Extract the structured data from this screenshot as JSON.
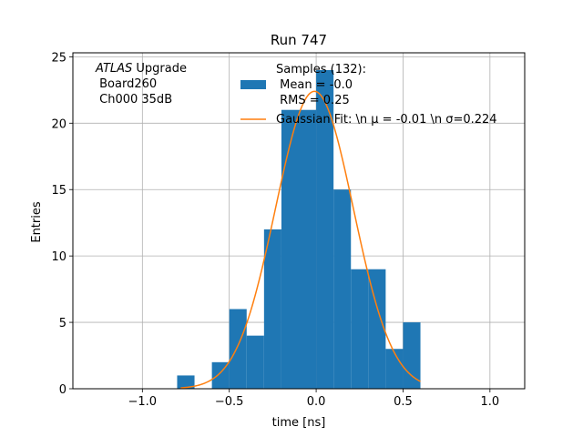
{
  "colors": {
    "bar": "#1f77b4",
    "fit": "#ff7f0e",
    "grid": "#b0b0b0",
    "axes": "#000000",
    "background": "#ffffff"
  },
  "chart_data": {
    "type": "bar",
    "title": "Run 747",
    "xlabel": "time [ns]",
    "ylabel": "Entries",
    "xlim": [
      -1.4,
      1.2
    ],
    "ylim": [
      0,
      25.3
    ],
    "grid": true,
    "xticks": [
      -1.0,
      -0.5,
      0.0,
      0.5,
      1.0
    ],
    "xtick_labels": [
      "−1.0",
      "−0.5",
      "0.0",
      "0.5",
      "1.0"
    ],
    "yticks": [
      0,
      5,
      10,
      15,
      20,
      25
    ],
    "ytick_labels": [
      "0",
      "5",
      "10",
      "15",
      "20",
      "25"
    ],
    "histogram": {
      "bin_edges": [
        -0.8,
        -0.7,
        -0.6,
        -0.5,
        -0.4,
        -0.3,
        -0.2,
        -0.1,
        0.0,
        0.1,
        0.2,
        0.3,
        0.4,
        0.5,
        0.6
      ],
      "counts": [
        1,
        0,
        2,
        6,
        4,
        12,
        21,
        21,
        24,
        15,
        9,
        9,
        3,
        5
      ]
    },
    "fit": {
      "mu": -0.01,
      "sigma": 0.224,
      "x_range": [
        -0.78,
        0.6
      ],
      "peak": 22.4
    },
    "annotation": {
      "line1_italic": "ATLAS",
      "line1_rest": " Upgrade",
      "line2": " Board260",
      "line3": " Ch000 35dB"
    },
    "legend": {
      "location": "upper center",
      "hist_lines": [
        "Samples (132):",
        " Mean = -0.0",
        " RMS = 0.25"
      ],
      "fit_label": "Gaussian Fit: \\n μ = -0.01 \\n σ=0.224"
    }
  }
}
